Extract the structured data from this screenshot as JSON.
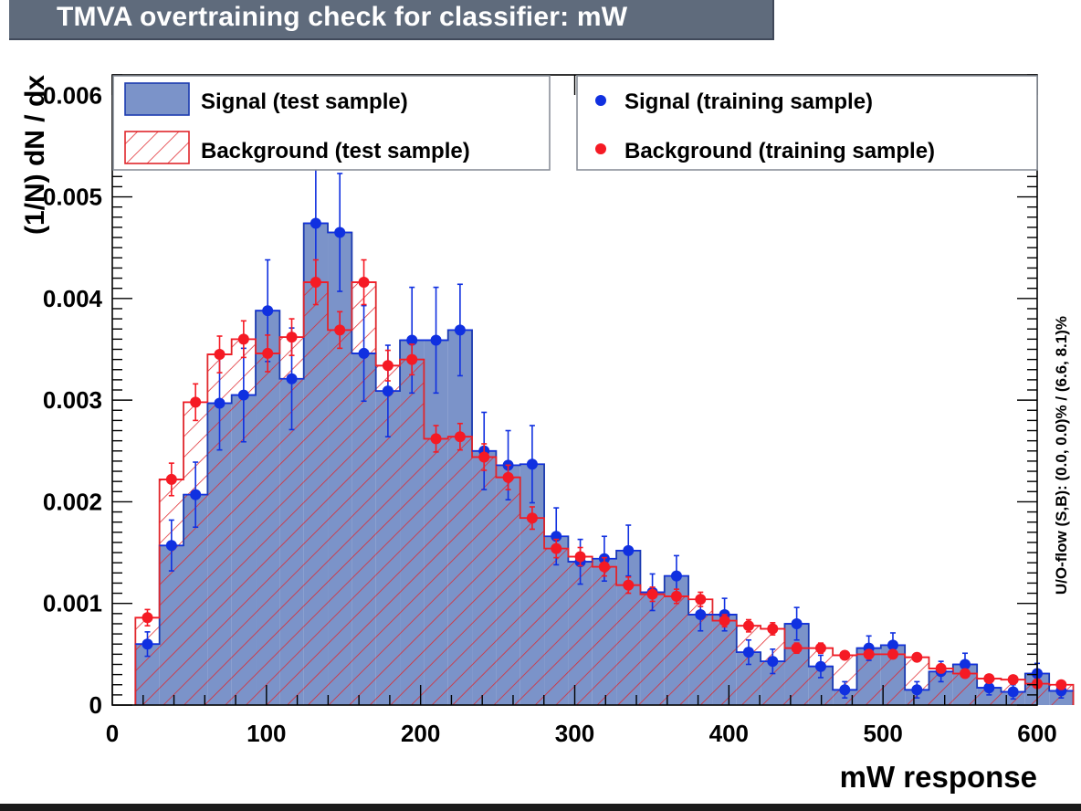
{
  "title": "TMVA overtraining check for classifier: mW",
  "chart_data": {
    "type": "bar",
    "xlabel": "mW response",
    "ylabel": "(1/N) dN / dx",
    "xlim": [
      0,
      600
    ],
    "ylim": [
      0,
      0.0062
    ],
    "x_ticks": [
      "0",
      "100",
      "200",
      "300",
      "400",
      "500",
      "600"
    ],
    "y_ticks": [
      "0",
      "0.001",
      "0.002",
      "0.003",
      "0.004",
      "0.005",
      "0.006"
    ],
    "side_note": "U/O-flow (S,B): (0.0, 0.0)% / (6.6, 8.1)%",
    "bin_start": 15,
    "bin_width": 15.6,
    "legend": [
      {
        "name": "Signal (test sample)",
        "style": "filled"
      },
      {
        "name": "Background (test sample)",
        "style": "hatched"
      },
      {
        "name": "Signal (training sample)",
        "style": "marker"
      },
      {
        "name": "Background (training sample)",
        "style": "marker"
      }
    ],
    "series": [
      {
        "name": "Signal (test sample)",
        "values": [
          0.0006,
          0.00157,
          0.00207,
          0.00297,
          0.00305,
          0.00388,
          0.00321,
          0.00474,
          0.00465,
          0.00346,
          0.00309,
          0.00359,
          0.00359,
          0.00369,
          0.0025,
          0.00236,
          0.00237,
          0.00166,
          0.00141,
          0.00144,
          0.00152,
          0.00111,
          0.00127,
          0.00089,
          0.00089,
          0.00052,
          0.00043,
          0.0008,
          0.00038,
          0.00015,
          0.00056,
          0.00059,
          0.00015,
          0.00033,
          0.0004,
          0.00017,
          0.00013,
          0.00031,
          0.00014
        ]
      },
      {
        "name": "Background (test sample)",
        "values": [
          0.00086,
          0.00222,
          0.00298,
          0.00345,
          0.0036,
          0.00346,
          0.00362,
          0.00416,
          0.00369,
          0.00416,
          0.00334,
          0.0034,
          0.00262,
          0.00264,
          0.00244,
          0.00224,
          0.00184,
          0.00154,
          0.00146,
          0.00136,
          0.00118,
          0.00109,
          0.00107,
          0.00104,
          0.00083,
          0.00078,
          0.00075,
          0.00056,
          0.00056,
          0.00049,
          0.0005,
          0.0005,
          0.00047,
          0.00036,
          0.00031,
          0.00026,
          0.00025,
          0.00021,
          0.0002
        ]
      },
      {
        "name": "Signal (training sample)",
        "values": [
          0.0006,
          0.00157,
          0.00207,
          0.00297,
          0.00305,
          0.00388,
          0.00321,
          0.00474,
          0.00465,
          0.00346,
          0.00309,
          0.00359,
          0.00359,
          0.00369,
          0.0025,
          0.00236,
          0.00237,
          0.00166,
          0.00141,
          0.00144,
          0.00152,
          0.00111,
          0.00127,
          0.00089,
          0.00089,
          0.00052,
          0.00043,
          0.0008,
          0.00038,
          0.00015,
          0.00056,
          0.00059,
          0.00015,
          0.00033,
          0.0004,
          0.00017,
          0.00013,
          0.00031,
          0.00014
        ],
        "errors": [
          0.00012,
          0.00025,
          0.00032,
          0.00046,
          0.00046,
          0.0005,
          0.0005,
          0.00055,
          0.00058,
          0.00047,
          0.00045,
          0.00052,
          0.00052,
          0.00045,
          0.00038,
          0.00034,
          0.00038,
          0.00028,
          0.00022,
          0.00022,
          0.00025,
          0.00018,
          0.0002,
          0.00016,
          0.00016,
          0.00012,
          0.00012,
          0.00016,
          0.00011,
          8e-05,
          0.00012,
          0.00012,
          8e-05,
          0.0001,
          0.00011,
          7e-05,
          7e-05,
          0.0001,
          7e-05
        ]
      },
      {
        "name": "Background (training sample)",
        "values": [
          0.00086,
          0.00222,
          0.00298,
          0.00345,
          0.0036,
          0.00346,
          0.00362,
          0.00416,
          0.00369,
          0.00416,
          0.00334,
          0.0034,
          0.00262,
          0.00264,
          0.00244,
          0.00224,
          0.00184,
          0.00154,
          0.00146,
          0.00136,
          0.00118,
          0.00109,
          0.00107,
          0.00104,
          0.00083,
          0.00078,
          0.00075,
          0.00056,
          0.00056,
          0.00049,
          0.0005,
          0.0005,
          0.00047,
          0.00036,
          0.00031,
          0.00026,
          0.00025,
          0.00021,
          0.0002
        ],
        "errors": [
          8e-05,
          0.00016,
          0.00018,
          0.00018,
          0.00018,
          0.00018,
          0.00018,
          0.00022,
          0.00018,
          0.00022,
          0.00015,
          0.00015,
          0.00013,
          0.00013,
          0.00013,
          0.00012,
          0.00011,
          9e-05,
          9e-05,
          9e-05,
          8e-05,
          7e-05,
          7e-05,
          7e-05,
          6e-05,
          6e-05,
          6e-05,
          5e-05,
          5e-05,
          4e-05,
          4e-05,
          4e-05,
          4e-05,
          4e-05,
          3e-05,
          3e-05,
          3e-05,
          3e-05,
          3e-05
        ]
      }
    ],
    "colors": {
      "signal_fill": "#7b93c9",
      "signal_line": "#1c3bb0",
      "signal_marker": "#1030e0",
      "background_line": "#e0262b",
      "background_marker": "#f51a24"
    },
    "grid": false,
    "legend_placement": "top"
  }
}
